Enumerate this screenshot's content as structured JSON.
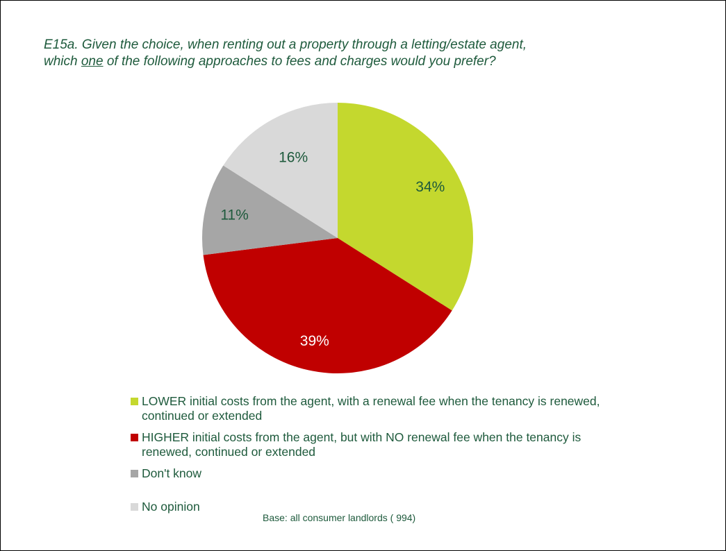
{
  "question": {
    "pre": "E15a. Given the choice, when renting out a property through a letting/estate agent, which ",
    "emph": "one",
    "post": " of the following approaches to fees and charges would you prefer?"
  },
  "chart_data": {
    "type": "pie",
    "categories": [
      "LOWER initial costs from the agent, with a renewal fee when the tenancy is renewed, continued or extended",
      "HIGHER initial costs from the agent, but with NO renewal fee when the tenancy is renewed, continued or extended",
      "Don't know",
      "No opinion"
    ],
    "values": [
      34,
      39,
      11,
      16
    ],
    "data_labels": [
      "34%",
      "39%",
      "11%",
      "16%"
    ],
    "colors": [
      "#c4d82e",
      "#c00000",
      "#a6a6a6",
      "#d9d9d9"
    ],
    "label_colors": [
      "#1e5a3c",
      "#ffffff",
      "#1e5a3c",
      "#1e5a3c"
    ],
    "start": "12 o'clock",
    "direction": "clockwise",
    "legend_position": "bottom"
  },
  "base_note": "Base: all consumer landlords ( 994)"
}
